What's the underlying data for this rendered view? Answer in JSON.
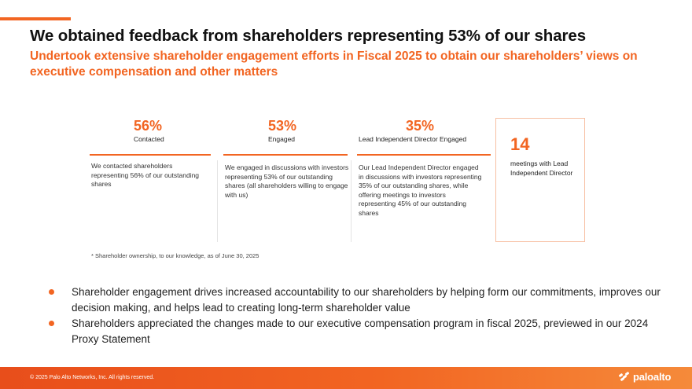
{
  "slide": {
    "title": "We obtained feedback from shareholders representing 53% of our shares",
    "subtitle": "Undertook extensive shareholder engagement efforts in Fiscal 2025 to obtain our shareholders’ views on executive compensation and other matters"
  },
  "stats": [
    {
      "percent": "56%",
      "label": "Contacted",
      "description": "We contacted shareholders representing 56% of our outstanding shares"
    },
    {
      "percent": "53%",
      "label": "Engaged",
      "description": "We engaged in discussions with investors representing 53% of our outstanding shares (all shareholders willing to engage with us)"
    },
    {
      "percent": "35%",
      "label": "Lead Independent Director Engaged",
      "description": "Our Lead Independent Director engaged in discussions with investors representing 35% of our outstanding shares, while offering meetings to investors representing 45% of our outstanding shares"
    }
  ],
  "meetings": {
    "count": "14",
    "text": "meetings with Lead Independent Director"
  },
  "footnote": "* Shareholder ownership, to our knowledge, as of June 30, 2025",
  "bullets": [
    "Shareholder engagement drives increased accountability to our shareholders by helping form our commitments, improves our decision making, and helps lead to creating long-term shareholder value",
    "Shareholders appreciated the changes made to our executive compensation program in fiscal 2025, previewed in our 2024 Proxy Statement"
  ],
  "footer": {
    "copyright": "© 2025 Palo Alto Networks, Inc. All rights reserved.",
    "logo_text": "paloalto",
    "logo_icon": "paloalto-logo-icon"
  },
  "colors": {
    "accent": "#f26522",
    "footer_start": "#e84e1b",
    "footer_end": "#f58a3a"
  }
}
